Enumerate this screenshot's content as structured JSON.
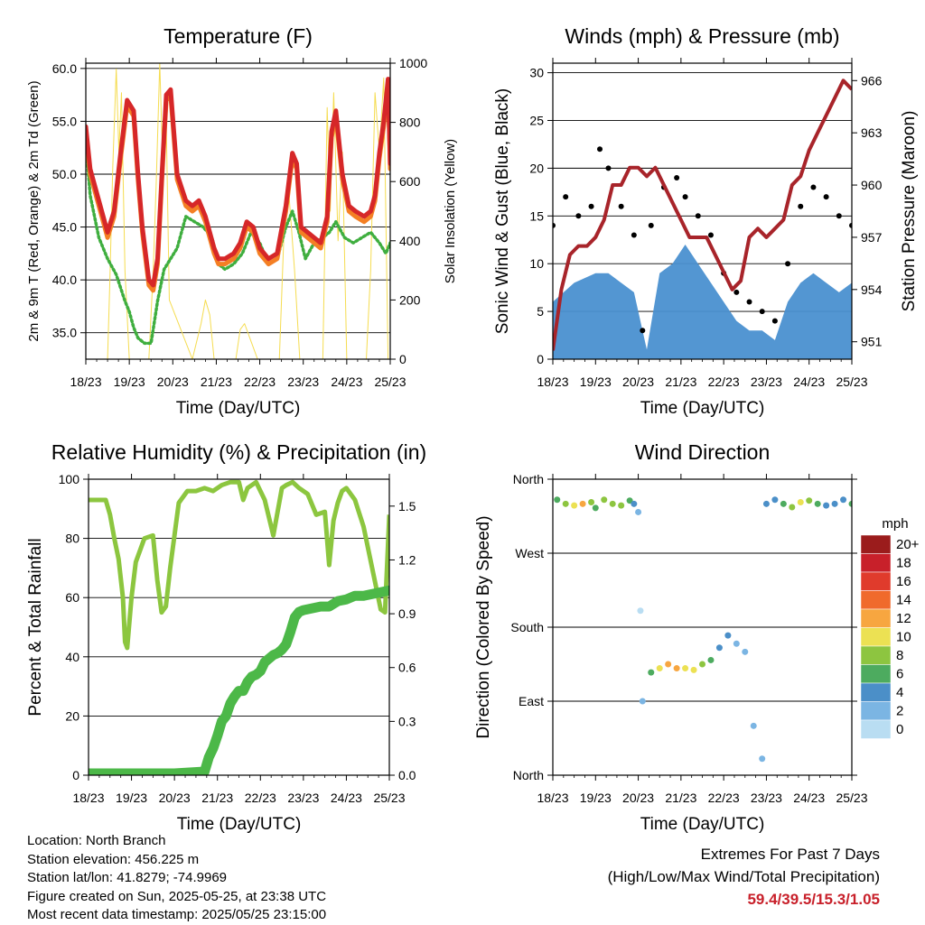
{
  "colors": {
    "red": "#d62728",
    "orange": "#f47f24",
    "green": "#3fae3f",
    "yellow": "#f5dc50",
    "black": "#000000",
    "blue": "#4a90d0",
    "maroon": "#a8242a",
    "rh_green": "#8cc63f",
    "precip_green": "#4cb848",
    "extremes": "#c8202a"
  },
  "chart_data": [
    {
      "type": "line",
      "title": "Temperature (F)",
      "xlabel": "Time (Day/UTC)",
      "ylabel": "2m & 9m T (Red, Orange) & 2m Td (Green)",
      "y2label": "Solar Insolation (Yellow)",
      "x_ticks": [
        "18/23",
        "19/23",
        "20/23",
        "21/23",
        "22/23",
        "23/23",
        "24/23",
        "25/23"
      ],
      "y_ticks": [
        "35.0",
        "40.0",
        "45.0",
        "50.0",
        "55.0",
        "60.0"
      ],
      "y2_ticks": [
        "0",
        "200",
        "400",
        "600",
        "800",
        "1000"
      ],
      "xlim": [
        0,
        7
      ],
      "ylim": [
        32.5,
        60.5
      ],
      "y2lim": [
        0,
        1000
      ],
      "grid": "horizontal",
      "series": [
        {
          "name": "2m T",
          "color": "red",
          "x": [
            0,
            0.1,
            0.3,
            0.5,
            0.65,
            0.8,
            0.95,
            1.1,
            1.2,
            1.3,
            1.45,
            1.55,
            1.65,
            1.75,
            1.85,
            1.95,
            2.1,
            2.3,
            2.45,
            2.6,
            2.75,
            2.85,
            2.95,
            3.05,
            3.2,
            3.4,
            3.55,
            3.7,
            3.85,
            4.0,
            4.2,
            4.4,
            4.6,
            4.75,
            4.85,
            4.95,
            5.1,
            5.25,
            5.4,
            5.55,
            5.65,
            5.75,
            5.9,
            6.05,
            6.2,
            6.4,
            6.55,
            6.65,
            6.75,
            6.85,
            6.95,
            7.0
          ],
          "y": [
            54.5,
            50.5,
            47.5,
            44.5,
            46.5,
            52,
            57,
            56,
            50,
            45,
            40,
            39.5,
            42,
            50,
            57.5,
            58,
            50,
            47.5,
            47,
            47.5,
            46,
            44.5,
            43,
            42,
            42,
            42.5,
            43.5,
            45.5,
            45,
            43,
            42,
            42.5,
            47,
            52,
            51,
            45,
            44.5,
            44,
            43.5,
            46,
            54,
            56,
            50,
            47,
            46.5,
            46,
            46.5,
            48,
            52,
            55,
            59,
            51
          ]
        },
        {
          "name": "9m T",
          "color": "orange",
          "x": [
            0,
            0.1,
            0.3,
            0.5,
            0.65,
            0.8,
            0.95,
            1.1,
            1.2,
            1.3,
            1.45,
            1.55,
            1.65,
            1.75,
            1.85,
            1.95,
            2.1,
            2.3,
            2.45,
            2.6,
            2.75,
            2.85,
            2.95,
            3.05,
            3.2,
            3.4,
            3.55,
            3.7,
            3.85,
            4.0,
            4.2,
            4.4,
            4.6,
            4.75,
            4.85,
            4.95,
            5.1,
            5.25,
            5.4,
            5.55,
            5.65,
            5.75,
            5.9,
            6.05,
            6.2,
            6.4,
            6.55,
            6.65,
            6.75,
            6.85,
            6.95,
            7.0
          ],
          "y": [
            54,
            50,
            47,
            44,
            46,
            51.5,
            56.5,
            55.5,
            49.5,
            44.5,
            39.5,
            39,
            41.5,
            49.5,
            57,
            57.5,
            49.5,
            47,
            46.5,
            47,
            45.5,
            44,
            42.5,
            41.5,
            41.5,
            42,
            43,
            45,
            44.5,
            42.5,
            41.5,
            42,
            46.5,
            51.5,
            50.5,
            44.5,
            44,
            43.5,
            43,
            45.5,
            53.5,
            55.5,
            49.5,
            46.5,
            46,
            45.5,
            46,
            47.5,
            51.5,
            54.5,
            58.5,
            50.5
          ]
        },
        {
          "name": "2m Td",
          "color": "green",
          "x": [
            0,
            0.1,
            0.3,
            0.5,
            0.7,
            0.9,
            1.0,
            1.1,
            1.2,
            1.35,
            1.5,
            1.65,
            1.8,
            1.95,
            2.1,
            2.3,
            2.5,
            2.7,
            2.9,
            3.05,
            3.2,
            3.4,
            3.6,
            3.8,
            4.0,
            4.2,
            4.4,
            4.6,
            4.75,
            4.9,
            5.05,
            5.25,
            5.45,
            5.6,
            5.75,
            5.95,
            6.15,
            6.35,
            6.55,
            6.75,
            6.9,
            7.0
          ],
          "y": [
            53,
            48,
            44,
            42,
            40.5,
            38,
            37,
            35.5,
            34.5,
            34,
            34,
            38,
            41,
            42,
            43,
            46,
            45.5,
            45,
            44,
            41.5,
            41,
            41.5,
            42.5,
            44.5,
            43.5,
            41.5,
            42,
            45,
            46.5,
            44.5,
            42,
            43.5,
            44,
            44.5,
            45.5,
            44,
            43.5,
            44,
            44.5,
            43.5,
            42.5,
            43.5
          ]
        },
        {
          "name": "Solar Insolation",
          "color": "yellow",
          "axis": "y2",
          "x": [
            0.1,
            0.5,
            0.55,
            0.62,
            0.7,
            0.76,
            0.82,
            0.9,
            1.0,
            1.45,
            1.55,
            1.62,
            1.7,
            1.76,
            1.84,
            1.92,
            2.45,
            2.65,
            2.75,
            2.85,
            2.95,
            3.45,
            3.55,
            3.65,
            3.8,
            3.95,
            4.45,
            4.55,
            4.65,
            4.8,
            4.92,
            5.45,
            5.55,
            5.62,
            5.7,
            5.8,
            5.9,
            6.0,
            6.45,
            6.55,
            6.65,
            6.75,
            6.85,
            6.95
          ],
          "y": [
            0,
            0,
            250,
            650,
            980,
            700,
            900,
            300,
            0,
            0,
            300,
            600,
            1000,
            700,
            880,
            200,
            0,
            120,
            200,
            150,
            0,
            0,
            100,
            120,
            60,
            0,
            0,
            400,
            600,
            300,
            0,
            0,
            850,
            500,
            900,
            400,
            700,
            0,
            0,
            300,
            900,
            700,
            950,
            0
          ]
        }
      ]
    },
    {
      "type": "scatter",
      "title": "Winds (mph) & Pressure (mb)",
      "xlabel": "Time (Day/UTC)",
      "ylabel": "Sonic Wind & Gust (Blue, Black)",
      "y2label": "Station Pressure (Maroon)",
      "x_ticks": [
        "18/23",
        "19/23",
        "20/23",
        "21/23",
        "22/23",
        "23/23",
        "24/23",
        "25/23"
      ],
      "y_ticks": [
        "0",
        "5",
        "10",
        "15",
        "20",
        "25",
        "30"
      ],
      "y2_ticks": [
        "951",
        "954",
        "957",
        "960",
        "963",
        "966"
      ],
      "xlim": [
        0,
        7
      ],
      "ylim": [
        0,
        31
      ],
      "y2lim": [
        950.0,
        967.0
      ],
      "grid": "horizontal",
      "series": [
        {
          "name": "Sonic Wind",
          "color": "blue",
          "x": [
            0,
            0.5,
            1.0,
            1.3,
            1.6,
            1.9,
            2.2,
            2.5,
            2.8,
            3.1,
            3.4,
            3.7,
            4.0,
            4.3,
            4.6,
            4.9,
            5.2,
            5.5,
            5.8,
            6.1,
            6.4,
            6.7,
            7.0
          ],
          "y": [
            6,
            8,
            9,
            9,
            8,
            7,
            1,
            9,
            10,
            12,
            10,
            8,
            6,
            4,
            3,
            3,
            2,
            6,
            8,
            9,
            8,
            7,
            8
          ]
        },
        {
          "name": "Gust",
          "color": "black",
          "x": [
            0,
            0.3,
            0.6,
            0.9,
            1.1,
            1.3,
            1.6,
            1.9,
            2.1,
            2.3,
            2.6,
            2.9,
            3.1,
            3.4,
            3.7,
            4.0,
            4.3,
            4.6,
            4.9,
            5.2,
            5.5,
            5.8,
            6.1,
            6.4,
            6.7,
            7.0
          ],
          "y": [
            14,
            17,
            15,
            16,
            22,
            20,
            16,
            13,
            3,
            14,
            18,
            19,
            17,
            15,
            13,
            9,
            7,
            6,
            5,
            4,
            10,
            16,
            18,
            17,
            15,
            14
          ]
        },
        {
          "name": "Station Pressure",
          "color": "maroon",
          "x": [
            0,
            0.2,
            0.4,
            0.6,
            0.8,
            1.0,
            1.2,
            1.4,
            1.6,
            1.8,
            2.0,
            2.2,
            2.4,
            2.6,
            2.8,
            3.0,
            3.2,
            3.4,
            3.6,
            3.8,
            4.0,
            4.2,
            4.4,
            4.6,
            4.8,
            5.0,
            5.2,
            5.4,
            5.6,
            5.8,
            6.0,
            6.2,
            6.4,
            6.6,
            6.8,
            7.0
          ],
          "y": [
            950.5,
            954,
            956,
            956.5,
            956.5,
            957,
            958,
            960,
            960,
            961,
            961,
            960.5,
            961,
            960,
            959,
            958,
            957,
            957,
            957,
            956,
            955,
            954,
            954.5,
            957,
            957.5,
            957,
            957.5,
            958,
            960,
            960.5,
            962,
            963,
            964,
            965,
            966,
            965.5
          ]
        }
      ]
    },
    {
      "type": "line",
      "title": "Relative Humidity (%) & Precipitation (in)",
      "xlabel": "Time (Day/UTC)",
      "ylabel": "Percent & Total Rainfall",
      "x_ticks": [
        "18/23",
        "19/23",
        "20/23",
        "21/23",
        "22/23",
        "23/23",
        "24/23",
        "25/23"
      ],
      "y_ticks": [
        "0",
        "20",
        "40",
        "60",
        "80",
        "100"
      ],
      "y2_ticks": [
        "0.0",
        "0.3",
        "0.6",
        "0.9",
        "1.2",
        "1.5"
      ],
      "xlim": [
        0,
        7
      ],
      "ylim": [
        0,
        100
      ],
      "y2lim": [
        0,
        1.65
      ],
      "grid": "horizontal",
      "series": [
        {
          "name": "Relative Humidity",
          "color": "rh_green",
          "x": [
            0,
            0.2,
            0.4,
            0.5,
            0.6,
            0.7,
            0.8,
            0.85,
            0.9,
            1.0,
            1.1,
            1.3,
            1.5,
            1.6,
            1.7,
            1.8,
            1.9,
            2.0,
            2.1,
            2.3,
            2.5,
            2.7,
            2.9,
            3.1,
            3.3,
            3.5,
            3.6,
            3.7,
            3.9,
            4.1,
            4.3,
            4.5,
            4.6,
            4.75,
            4.9,
            5.1,
            5.3,
            5.5,
            5.6,
            5.7,
            5.8,
            5.9,
            6.0,
            6.2,
            6.4,
            6.6,
            6.8,
            6.9,
            7.0
          ],
          "y": [
            93,
            93,
            93,
            88,
            80,
            73,
            60,
            45,
            43,
            60,
            72,
            80,
            81,
            66,
            55,
            57,
            70,
            81,
            92,
            96,
            96,
            97,
            96,
            98,
            99,
            99,
            93,
            97,
            99,
            93,
            81,
            97,
            98,
            99,
            97,
            95,
            88,
            89,
            71,
            86,
            92,
            96,
            97,
            93,
            84,
            70,
            56,
            55,
            88
          ]
        },
        {
          "name": "Total Rainfall",
          "color": "precip_green",
          "axis": "y2",
          "x": [
            0,
            1,
            2,
            2.7,
            2.8,
            2.9,
            3.0,
            3.1,
            3.2,
            3.3,
            3.4,
            3.5,
            3.6,
            3.7,
            3.8,
            3.9,
            4.0,
            4.1,
            4.2,
            4.3,
            4.4,
            4.5,
            4.6,
            4.7,
            4.8,
            4.9,
            5.0,
            5.2,
            5.4,
            5.6,
            5.8,
            6.0,
            6.2,
            6.4,
            6.6,
            6.8,
            7.0
          ],
          "y": [
            0.01,
            0.01,
            0.01,
            0.02,
            0.1,
            0.15,
            0.22,
            0.3,
            0.33,
            0.4,
            0.44,
            0.47,
            0.47,
            0.52,
            0.55,
            0.56,
            0.58,
            0.63,
            0.65,
            0.67,
            0.68,
            0.7,
            0.73,
            0.8,
            0.88,
            0.91,
            0.92,
            0.93,
            0.94,
            0.94,
            0.97,
            0.98,
            1.0,
            1.0,
            1.01,
            1.02,
            1.03
          ]
        }
      ]
    },
    {
      "type": "scatter",
      "title": "Wind Direction",
      "xlabel": "Time (Day/UTC)",
      "ylabel": "Direction (Colored By Speed)",
      "x_ticks": [
        "18/23",
        "19/23",
        "20/23",
        "21/23",
        "22/23",
        "23/23",
        "24/23",
        "25/23"
      ],
      "y_ticks": [
        "North",
        "East",
        "South",
        "West",
        "North"
      ],
      "xlim": [
        0,
        7
      ],
      "ylim": [
        0,
        360
      ],
      "grid": "horizontal",
      "legend": {
        "title": "mph",
        "labels": [
          "20+",
          "18",
          "16",
          "14",
          "12",
          "10",
          "8",
          "6",
          "4",
          "2",
          "0"
        ],
        "colors": [
          "#9b1c1c",
          "#c8202a",
          "#e03b2c",
          "#f06a2c",
          "#f7a640",
          "#ece153",
          "#8dc540",
          "#4dab5f",
          "#4b8fc8",
          "#7bb5e3",
          "#b9ddf2"
        ]
      },
      "series": [
        {
          "name": "Direction",
          "x": [
            0.1,
            0.3,
            0.5,
            0.7,
            0.9,
            1.0,
            1.2,
            1.4,
            1.6,
            1.8,
            1.9,
            2.0,
            2.05,
            2.1,
            2.3,
            2.5,
            2.7,
            2.9,
            3.1,
            3.3,
            3.5,
            3.7,
            3.9,
            4.1,
            4.3,
            4.5,
            4.7,
            4.9,
            5.0,
            5.2,
            5.4,
            5.6,
            5.8,
            6.0,
            6.2,
            6.4,
            6.6,
            6.8,
            7.0
          ],
          "y": [
            335,
            330,
            328,
            330,
            332,
            325,
            335,
            330,
            328,
            334,
            330,
            320,
            200,
            90,
            125,
            130,
            135,
            130,
            130,
            128,
            135,
            140,
            155,
            170,
            160,
            150,
            60,
            20,
            330,
            335,
            330,
            326,
            332,
            334,
            330,
            328,
            330,
            335,
            330
          ],
          "speed": [
            6,
            8,
            10,
            12,
            9,
            7,
            8,
            8,
            9,
            6,
            4,
            3,
            1,
            2,
            6,
            10,
            12,
            12,
            10,
            10,
            8,
            6,
            5,
            4,
            3,
            2,
            2,
            3,
            4,
            5,
            6,
            8,
            10,
            8,
            6,
            5,
            4,
            5,
            6
          ]
        }
      ]
    }
  ],
  "footer": {
    "location": "Location: North Branch",
    "elevation": "Station elevation: 456.225 m",
    "latlon": "Station lat/lon: 41.8279; -74.9969",
    "created": "Figure created on Sun, 2025-05-25, at 23:38 UTC",
    "timestamp": "Most recent data timestamp: 2025/05/25 23:15:00"
  },
  "extremes": {
    "title": "Extremes For Past 7 Days",
    "subtitle": "(High/Low/Max Wind/Total Precipitation)",
    "values": "59.4/39.5/15.3/1.05"
  }
}
